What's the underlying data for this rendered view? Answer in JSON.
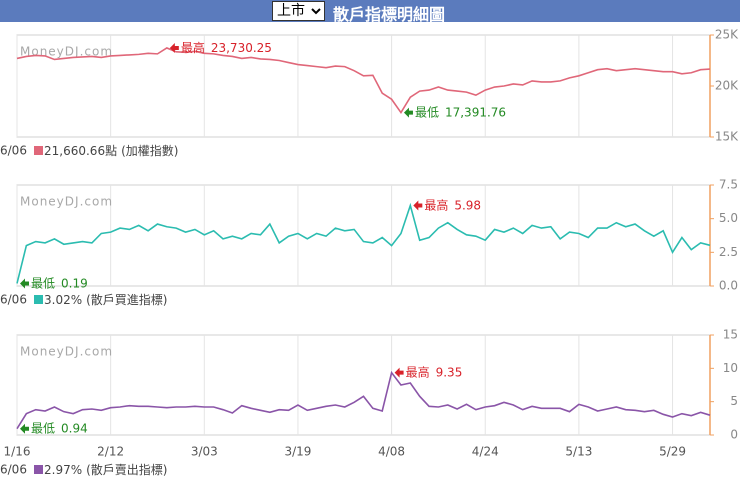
{
  "header": {
    "market": "上市",
    "title": "散戶指標明細圖"
  },
  "chart_data": [
    {
      "type": "line",
      "watermark": "MoneyDJ.com",
      "color": "#e06779",
      "values": [
        22700,
        22900,
        23000,
        22950,
        22600,
        22700,
        22800,
        22850,
        22900,
        22800,
        22950,
        23000,
        23050,
        23100,
        23200,
        23150,
        23730.25,
        23350,
        23300,
        23400,
        23200,
        23150,
        23000,
        22900,
        22700,
        22800,
        22650,
        22600,
        22500,
        22300,
        22100,
        22000,
        21900,
        21800,
        21950,
        21900,
        21500,
        21000,
        21050,
        19300,
        18700,
        17391.76,
        18900,
        19500,
        19600,
        19900,
        19600,
        19500,
        19400,
        19100,
        19600,
        19900,
        20000,
        20200,
        20100,
        20500,
        20400,
        20400,
        20500,
        20800,
        21000,
        21300,
        21600,
        21700,
        21500,
        21600,
        21700,
        21600,
        21500,
        21400,
        21400,
        21200,
        21300,
        21600,
        21660.66
      ],
      "ylim": [
        15000,
        25000
      ],
      "yticks": [
        {
          "value": 25000,
          "label": "25K"
        },
        {
          "value": 20000,
          "label": "20K"
        },
        {
          "value": 15000,
          "label": "15K"
        }
      ],
      "max": {
        "text": "最高",
        "value": 23730.25,
        "label": "23,730.25"
      },
      "min": {
        "text": "最低",
        "value": 17391.76,
        "label": "17,391.76"
      },
      "legend": {
        "date": "6/06",
        "last_label": "21,660.66點",
        "name": "(加權指數)"
      }
    },
    {
      "type": "line",
      "watermark": "MoneyDJ.com",
      "color": "#2bbcb0",
      "values": [
        0.19,
        3.0,
        3.3,
        3.2,
        3.5,
        3.1,
        3.2,
        3.3,
        3.2,
        3.9,
        4.0,
        4.3,
        4.2,
        4.5,
        4.1,
        4.6,
        4.4,
        4.3,
        4.0,
        4.2,
        3.8,
        4.1,
        3.5,
        3.7,
        3.5,
        3.9,
        3.8,
        4.6,
        3.2,
        3.7,
        3.9,
        3.5,
        3.9,
        3.7,
        4.3,
        4.1,
        4.2,
        3.3,
        3.2,
        3.6,
        3.0,
        3.9,
        5.98,
        3.4,
        3.6,
        4.3,
        4.7,
        4.2,
        3.8,
        3.7,
        3.4,
        4.2,
        4.0,
        4.3,
        3.9,
        4.5,
        4.3,
        4.4,
        3.5,
        4.0,
        3.9,
        3.6,
        4.3,
        4.3,
        4.7,
        4.4,
        4.6,
        4.1,
        3.7,
        4.1,
        2.5,
        3.6,
        2.7,
        3.2,
        3.02
      ],
      "ylim": [
        0,
        7.5
      ],
      "yticks": [
        7.5,
        {
          "value": 5,
          "label": "5.0"
        },
        2.5,
        {
          "value": 0,
          "label": "0.0"
        }
      ],
      "max": {
        "text": "最高",
        "value": 5.98,
        "label": "5.98"
      },
      "min": {
        "text": "最低",
        "value": 0.19,
        "label": "0.19"
      },
      "legend": {
        "date": "6/06",
        "last_label": "3.02%",
        "name": "(散戶買進指標)"
      }
    },
    {
      "type": "line",
      "watermark": "MoneyDJ.com",
      "color": "#8a55a8",
      "categories": [
        "1/16",
        null,
        null,
        null,
        null,
        null,
        null,
        null,
        null,
        null,
        "2/12",
        null,
        null,
        null,
        null,
        null,
        null,
        null,
        null,
        null,
        "3/03",
        null,
        null,
        null,
        null,
        null,
        null,
        null,
        null,
        null,
        "3/19",
        null,
        null,
        null,
        null,
        null,
        null,
        null,
        null,
        null,
        "4/08",
        null,
        null,
        null,
        null,
        null,
        null,
        null,
        null,
        null,
        "4/24",
        null,
        null,
        null,
        null,
        null,
        null,
        null,
        null,
        null,
        "5/13",
        null,
        null,
        null,
        null,
        null,
        null,
        null,
        null,
        null,
        "5/29",
        null,
        null,
        null,
        null
      ],
      "values": [
        0.94,
        3.2,
        3.8,
        3.6,
        4.2,
        3.5,
        3.2,
        3.8,
        3.9,
        3.7,
        4.1,
        4.2,
        4.4,
        4.3,
        4.3,
        4.2,
        4.1,
        4.2,
        4.2,
        4.3,
        4.2,
        4.2,
        3.8,
        3.3,
        4.4,
        4.0,
        3.7,
        3.4,
        3.8,
        3.7,
        4.5,
        3.7,
        4.0,
        4.3,
        4.5,
        4.2,
        4.9,
        5.8,
        4.0,
        3.6,
        9.35,
        7.5,
        7.8,
        5.8,
        4.3,
        4.2,
        4.5,
        3.9,
        4.6,
        3.8,
        4.2,
        4.4,
        4.9,
        4.5,
        3.8,
        4.3,
        4.0,
        4.0,
        4.0,
        3.5,
        4.6,
        4.2,
        3.6,
        3.9,
        4.2,
        3.8,
        3.7,
        3.5,
        3.7,
        3.1,
        2.7,
        3.2,
        2.9,
        3.4,
        2.97
      ],
      "ylim": [
        0,
        15
      ],
      "yticks": [
        15,
        10,
        5,
        0
      ],
      "max": {
        "text": "最高",
        "value": 9.35,
        "label": "9.35"
      },
      "min": {
        "text": "最低",
        "value": 0.94,
        "label": "0.94"
      },
      "legend": {
        "date": "6/06",
        "last_label": "2.97%",
        "name": "(散戶賣出指標)"
      }
    }
  ]
}
